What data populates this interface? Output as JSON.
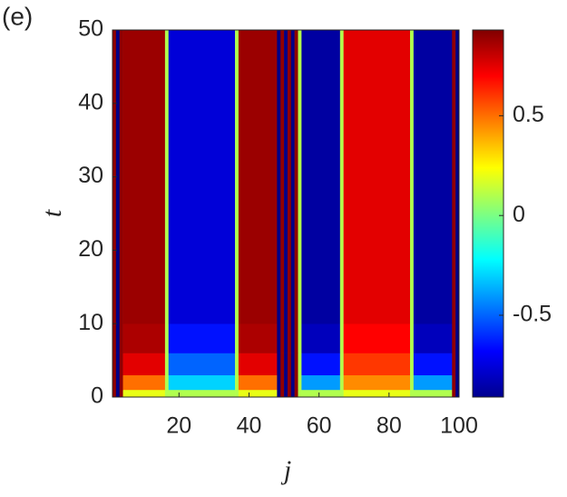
{
  "chart_data": {
    "type": "heatmap",
    "panel_label": "(e)",
    "xlabel": "j",
    "ylabel": "t",
    "colormap": "jet",
    "x_bins": [
      1,
      2,
      3,
      4,
      16,
      17,
      36,
      37,
      48,
      49,
      50,
      51,
      52,
      53,
      54,
      55,
      66,
      67,
      86,
      87,
      98,
      99,
      100
    ],
    "y_bins": [
      0,
      1,
      3,
      6,
      10,
      50
    ],
    "values": [
      [
        0.9,
        -0.9,
        0.9,
        0.2,
        0.1,
        0.1,
        0.1,
        0.2,
        -0.9,
        0.9,
        -0.9,
        0.9,
        -0.9,
        0.9,
        0.1,
        0.1,
        0.1,
        0.2,
        0.1,
        0.1,
        0.9,
        -0.9
      ],
      [
        0.9,
        -0.9,
        0.9,
        0.5,
        0.1,
        -0.3,
        0.1,
        0.5,
        -0.9,
        0.9,
        -0.9,
        0.9,
        -0.9,
        0.9,
        0.1,
        -0.4,
        0.1,
        0.45,
        0.1,
        -0.4,
        0.9,
        -0.9
      ],
      [
        0.9,
        -0.9,
        0.9,
        0.75,
        0.1,
        -0.5,
        0.1,
        0.75,
        -0.9,
        0.9,
        -0.9,
        0.9,
        -0.9,
        0.9,
        0.1,
        -0.65,
        0.1,
        0.6,
        0.1,
        -0.65,
        0.9,
        -0.9
      ],
      [
        0.9,
        -0.9,
        0.9,
        0.85,
        0.1,
        -0.65,
        0.1,
        0.85,
        -0.9,
        0.9,
        -0.9,
        0.9,
        -0.9,
        0.9,
        0.1,
        -0.8,
        0.1,
        0.7,
        0.1,
        -0.8,
        0.9,
        -0.9
      ],
      [
        0.9,
        -0.9,
        0.9,
        0.88,
        0.1,
        -0.75,
        0.1,
        0.88,
        -0.9,
        0.9,
        -0.9,
        0.9,
        -0.9,
        0.9,
        0.1,
        -0.85,
        0.1,
        0.75,
        0.1,
        -0.85,
        0.9,
        -0.9
      ]
    ],
    "xlim": [
      1,
      100
    ],
    "ylim": [
      0,
      50
    ],
    "xticks": [
      20,
      40,
      60,
      80,
      100
    ],
    "yticks": [
      0,
      10,
      20,
      30,
      40,
      50
    ],
    "clim": [
      -0.91,
      0.93
    ],
    "cticks": [
      -0.5,
      0,
      0.5
    ]
  }
}
